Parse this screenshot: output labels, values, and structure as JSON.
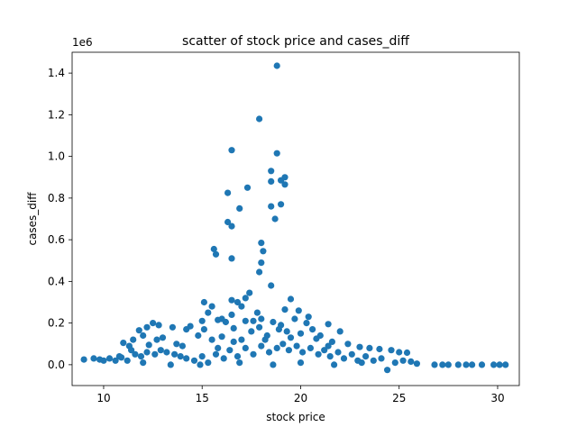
{
  "chart_data": {
    "type": "scatter",
    "title": "scatter of stock price and cases_diff",
    "xlabel": "stock price",
    "ylabel": "cases_diff",
    "y_offset_text": "1e6",
    "xlim": [
      8.4,
      31.1
    ],
    "ylim": [
      -0.1,
      1.5
    ],
    "xticks": [
      10,
      15,
      20,
      25,
      30
    ],
    "xtick_labels": [
      "10",
      "15",
      "20",
      "25",
      "30"
    ],
    "yticks": [
      0.0,
      0.2,
      0.4,
      0.6,
      0.8,
      1.0,
      1.2,
      1.4
    ],
    "ytick_labels": [
      "0.0",
      "0.2",
      "0.4",
      "0.6",
      "0.8",
      "1.0",
      "1.2",
      "1.4"
    ],
    "grid": false,
    "legend": "none",
    "marker_color": "#1f77b4",
    "points": [
      [
        18.8,
        1.435
      ],
      [
        17.9,
        1.18
      ],
      [
        16.5,
        1.03
      ],
      [
        18.8,
        1.015
      ],
      [
        18.5,
        0.93
      ],
      [
        19.2,
        0.9
      ],
      [
        19.0,
        0.885
      ],
      [
        18.5,
        0.88
      ],
      [
        19.2,
        0.865
      ],
      [
        17.3,
        0.85
      ],
      [
        16.3,
        0.825
      ],
      [
        19.0,
        0.77
      ],
      [
        18.5,
        0.76
      ],
      [
        16.9,
        0.75
      ],
      [
        18.7,
        0.7
      ],
      [
        16.3,
        0.685
      ],
      [
        16.5,
        0.665
      ],
      [
        18.0,
        0.585
      ],
      [
        15.6,
        0.555
      ],
      [
        18.1,
        0.545
      ],
      [
        15.7,
        0.53
      ],
      [
        16.5,
        0.51
      ],
      [
        18.0,
        0.49
      ],
      [
        17.9,
        0.445
      ],
      [
        18.5,
        0.38
      ],
      [
        17.4,
        0.345
      ],
      [
        15.1,
        0.3
      ],
      [
        17.2,
        0.32
      ],
      [
        16.5,
        0.31
      ],
      [
        19.5,
        0.315
      ],
      [
        16.8,
        0.3
      ],
      [
        15.5,
        0.28
      ],
      [
        17.0,
        0.28
      ],
      [
        19.2,
        0.265
      ],
      [
        19.9,
        0.26
      ],
      [
        15.3,
        0.25
      ],
      [
        16.5,
        0.24
      ],
      [
        18.0,
        0.22
      ],
      [
        19.7,
        0.22
      ],
      [
        15.0,
        0.21
      ],
      [
        15.8,
        0.215
      ],
      [
        16.2,
        0.205
      ],
      [
        17.6,
        0.21
      ],
      [
        18.6,
        0.205
      ],
      [
        20.3,
        0.2
      ],
      [
        21.4,
        0.195
      ],
      [
        12.5,
        0.2
      ],
      [
        12.8,
        0.19
      ],
      [
        12.2,
        0.18
      ],
      [
        11.8,
        0.165
      ],
      [
        13.5,
        0.18
      ],
      [
        14.2,
        0.17
      ],
      [
        14.4,
        0.185
      ],
      [
        15.1,
        0.17
      ],
      [
        16.6,
        0.175
      ],
      [
        17.5,
        0.16
      ],
      [
        18.9,
        0.17
      ],
      [
        20.6,
        0.17
      ],
      [
        22.0,
        0.16
      ],
      [
        13.0,
        0.13
      ],
      [
        11.5,
        0.12
      ],
      [
        11.0,
        0.105
      ],
      [
        11.3,
        0.09
      ],
      [
        12.3,
        0.095
      ],
      [
        14.8,
        0.14
      ],
      [
        15.5,
        0.12
      ],
      [
        16.0,
        0.135
      ],
      [
        17.0,
        0.12
      ],
      [
        18.2,
        0.12
      ],
      [
        19.5,
        0.13
      ],
      [
        20.8,
        0.125
      ],
      [
        21.6,
        0.11
      ],
      [
        22.4,
        0.1
      ],
      [
        23.0,
        0.085
      ],
      [
        23.5,
        0.08
      ],
      [
        24.0,
        0.075
      ],
      [
        24.6,
        0.07
      ],
      [
        25.0,
        0.06
      ],
      [
        25.4,
        0.058
      ],
      [
        9.0,
        0.025
      ],
      [
        9.5,
        0.03
      ],
      [
        9.8,
        0.025
      ],
      [
        10.0,
        0.02
      ],
      [
        10.3,
        0.03
      ],
      [
        10.6,
        0.02
      ],
      [
        10.9,
        0.035
      ],
      [
        11.2,
        0.02
      ],
      [
        11.6,
        0.05
      ],
      [
        11.9,
        0.04
      ],
      [
        12.2,
        0.06
      ],
      [
        12.6,
        0.05
      ],
      [
        12.9,
        0.07
      ],
      [
        13.2,
        0.06
      ],
      [
        13.6,
        0.05
      ],
      [
        13.9,
        0.04
      ],
      [
        14.2,
        0.03
      ],
      [
        14.6,
        0.02
      ],
      [
        15.0,
        0.04
      ],
      [
        15.3,
        0.01
      ],
      [
        15.7,
        0.05
      ],
      [
        16.1,
        0.03
      ],
      [
        16.4,
        0.07
      ],
      [
        16.8,
        0.04
      ],
      [
        17.2,
        0.08
      ],
      [
        17.6,
        0.05
      ],
      [
        18.0,
        0.09
      ],
      [
        18.4,
        0.06
      ],
      [
        18.8,
        0.08
      ],
      [
        19.1,
        0.1
      ],
      [
        19.4,
        0.07
      ],
      [
        19.8,
        0.09
      ],
      [
        20.1,
        0.06
      ],
      [
        20.5,
        0.08
      ],
      [
        20.9,
        0.05
      ],
      [
        21.2,
        0.07
      ],
      [
        21.5,
        0.04
      ],
      [
        21.9,
        0.06
      ],
      [
        22.2,
        0.03
      ],
      [
        22.6,
        0.05
      ],
      [
        22.9,
        0.02
      ],
      [
        23.3,
        0.04
      ],
      [
        23.7,
        0.02
      ],
      [
        24.1,
        0.03
      ],
      [
        24.4,
        -0.025
      ],
      [
        24.8,
        0.01
      ],
      [
        25.2,
        0.02
      ],
      [
        25.6,
        0.015
      ],
      [
        25.9,
        0.005
      ],
      [
        26.8,
        0.0
      ],
      [
        27.2,
        0.0
      ],
      [
        27.5,
        0.0
      ],
      [
        28.0,
        0.0
      ],
      [
        28.4,
        0.0
      ],
      [
        28.7,
        0.0
      ],
      [
        29.2,
        0.0
      ],
      [
        29.8,
        0.0
      ],
      [
        30.1,
        0.0
      ],
      [
        30.4,
        0.0
      ],
      [
        12.0,
        0.01
      ],
      [
        13.4,
        0.0
      ],
      [
        14.9,
        0.0
      ],
      [
        16.9,
        0.01
      ],
      [
        18.6,
        0.0
      ],
      [
        20.0,
        0.01
      ],
      [
        21.7,
        0.0
      ],
      [
        23.1,
        0.01
      ],
      [
        16.0,
        0.22
      ],
      [
        17.8,
        0.25
      ],
      [
        20.4,
        0.23
      ],
      [
        19.0,
        0.19
      ],
      [
        21.0,
        0.14
      ],
      [
        21.4,
        0.09
      ],
      [
        20.0,
        0.15
      ],
      [
        19.3,
        0.16
      ],
      [
        18.3,
        0.14
      ],
      [
        17.9,
        0.18
      ],
      [
        17.2,
        0.21
      ],
      [
        16.6,
        0.11
      ],
      [
        15.8,
        0.08
      ],
      [
        14.0,
        0.09
      ],
      [
        13.7,
        0.1
      ],
      [
        12.7,
        0.12
      ],
      [
        12.0,
        0.14
      ],
      [
        11.4,
        0.07
      ],
      [
        10.8,
        0.04
      ]
    ]
  }
}
